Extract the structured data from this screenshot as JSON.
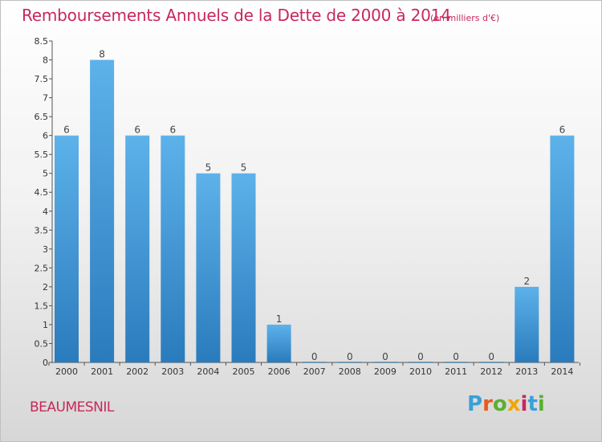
{
  "title": "Remboursements Annuels de la Dette de 2000 à 2014",
  "subtitle": "(en milliers d'€)",
  "commune": "BEAUMESNIL",
  "brand": {
    "letters": [
      "P",
      "r",
      "o",
      "x",
      "i",
      "t",
      "i"
    ],
    "colors": [
      "#3aa0d8",
      "#e95a1e",
      "#5ab031",
      "#f0a500",
      "#c8285a",
      "#3aa0d8",
      "#5ab031"
    ]
  },
  "colors": {
    "bar_top": "#5db2ea",
    "bar_bottom": "#2a7bbc",
    "title": "#c8285a"
  },
  "chart_data": {
    "type": "bar",
    "categories": [
      "2000",
      "2001",
      "2002",
      "2003",
      "2004",
      "2005",
      "2006",
      "2007",
      "2008",
      "2009",
      "2010",
      "2011",
      "2012",
      "2013",
      "2014"
    ],
    "values": [
      6,
      8,
      6,
      6,
      5,
      5,
      1,
      0,
      0,
      0,
      0,
      0,
      0,
      2,
      6
    ],
    "data_labels": [
      "6",
      "8",
      "6",
      "6",
      "5",
      "5",
      "1",
      "0",
      "0",
      "0",
      "0",
      "0",
      "0",
      "2",
      "6"
    ],
    "yticks": [
      "0",
      "0.5",
      "1",
      "1.5",
      "2",
      "2.5",
      "3",
      "3.5",
      "4",
      "4.5",
      "5",
      "5.5",
      "6",
      "6.5",
      "7",
      "7.5",
      "8",
      "8.5"
    ],
    "ylim": [
      0,
      8.5
    ],
    "grid": false
  }
}
